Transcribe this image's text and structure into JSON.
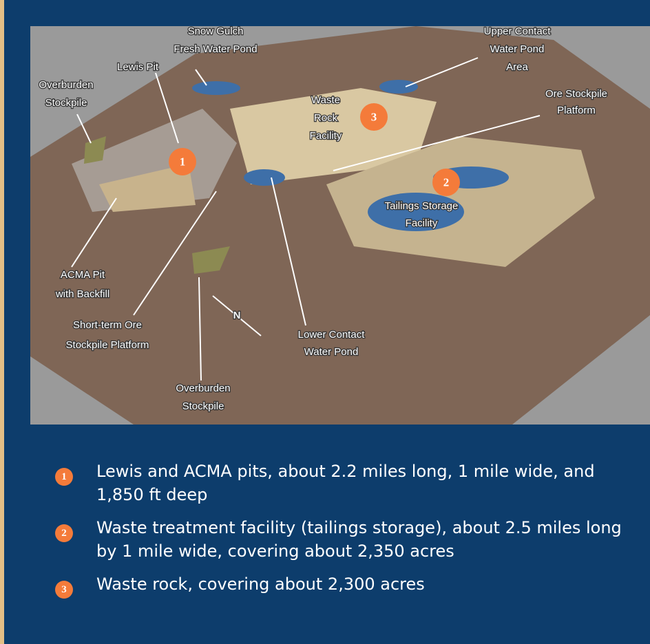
{
  "labels": [
    {
      "lines": [
        "Snow Gulch",
        "Fresh Water Pond"
      ]
    },
    {
      "lines": [
        "Lewis Pit"
      ]
    },
    {
      "lines": [
        "Overburden",
        "Stockpile"
      ]
    },
    {
      "lines": [
        "Waste",
        "Rock",
        "Facility"
      ]
    },
    {
      "lines": [
        "Upper Contact",
        "Water Pond",
        "Area"
      ]
    },
    {
      "lines": [
        "Ore Stockpile",
        "Platform"
      ]
    },
    {
      "lines": [
        "Tailings Storage",
        "Facility"
      ]
    },
    {
      "lines": [
        "ACMA Pit",
        "with Backfill"
      ]
    },
    {
      "lines": [
        "Short-term Ore",
        "Stockpile Platform"
      ]
    },
    {
      "lines": [
        "Lower Contact",
        "Water Pond"
      ]
    },
    {
      "lines": [
        "Overburden",
        "Stockpile"
      ]
    }
  ],
  "compass": "N",
  "markers": [
    "1",
    "2",
    "3"
  ],
  "legend": [
    {
      "number": "1",
      "text": "Lewis and ACMA pits, about 2.2 miles long, 1 mile wide, and 1,850 ft deep"
    },
    {
      "number": "2",
      "text": "Waste treatment facility (tailings storage), about 2.5 miles long by 1 mile wide, covering about 2,350 acres"
    },
    {
      "number": "3",
      "text": "Waste rock, covering about 2,300 acres"
    }
  ]
}
